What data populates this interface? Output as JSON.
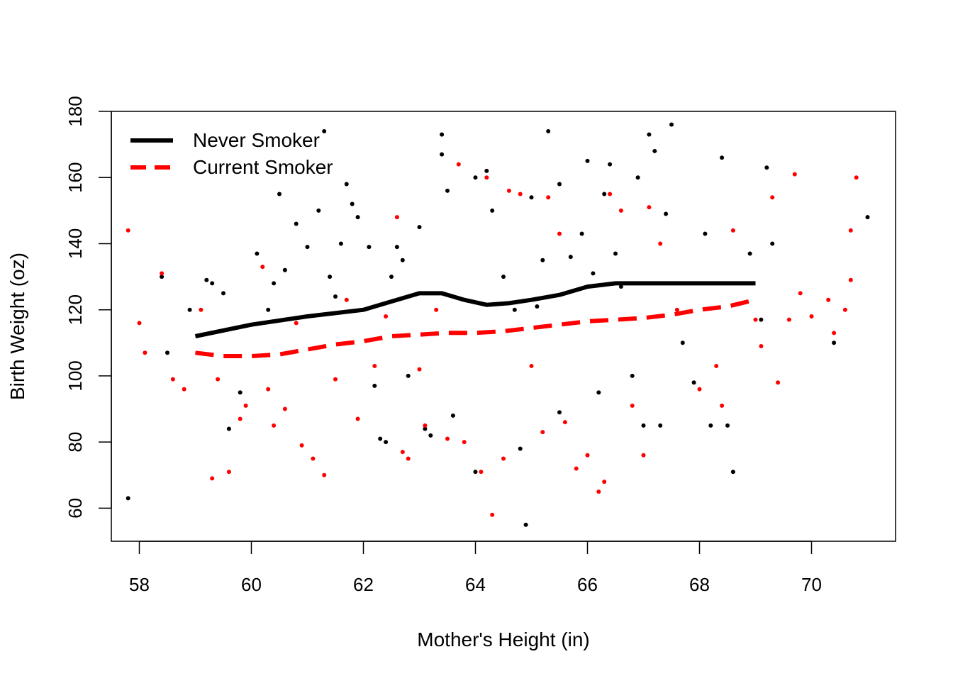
{
  "chart_data": {
    "type": "scatter",
    "title": "",
    "xlabel": "Mother's Height (in)",
    "ylabel": "Birth Weight (oz)",
    "xlim": [
      57.5,
      71.5
    ],
    "ylim": [
      50,
      180
    ],
    "xticks": [
      58,
      60,
      62,
      64,
      66,
      68,
      70
    ],
    "yticks": [
      60,
      80,
      100,
      120,
      140,
      160,
      180
    ],
    "grid": false,
    "legend_position": "top-left",
    "legend": [
      {
        "label": "Never Smoker",
        "color": "#000000",
        "line": "solid"
      },
      {
        "label": "Current Smoker",
        "color": "#ff0000",
        "line": "dashed"
      }
    ],
    "series": [
      {
        "name": "Never Smoker",
        "color": "#000000",
        "smooth": [
          [
            59,
            112
          ],
          [
            60,
            115.5
          ],
          [
            61,
            118
          ],
          [
            62,
            120
          ],
          [
            62.5,
            122.5
          ],
          [
            63,
            125
          ],
          [
            63.4,
            125
          ],
          [
            63.8,
            123
          ],
          [
            64.2,
            121.5
          ],
          [
            64.6,
            122
          ],
          [
            65,
            123
          ],
          [
            65.5,
            124.5
          ],
          [
            66,
            127
          ],
          [
            66.5,
            128
          ],
          [
            67,
            128
          ],
          [
            68,
            128
          ],
          [
            69,
            128
          ]
        ],
        "points": [
          [
            57.8,
            63
          ],
          [
            58.4,
            130
          ],
          [
            58.5,
            107
          ],
          [
            58.9,
            120
          ],
          [
            59.2,
            129
          ],
          [
            59.3,
            128
          ],
          [
            59.5,
            125
          ],
          [
            59.6,
            84
          ],
          [
            59.8,
            95
          ],
          [
            60.1,
            137
          ],
          [
            60.3,
            120
          ],
          [
            60.4,
            128
          ],
          [
            60.5,
            155
          ],
          [
            60.6,
            132
          ],
          [
            60.8,
            146
          ],
          [
            61,
            139
          ],
          [
            61.2,
            150
          ],
          [
            61.3,
            174
          ],
          [
            61.4,
            130
          ],
          [
            61.5,
            124
          ],
          [
            61.6,
            140
          ],
          [
            61.7,
            158
          ],
          [
            61.8,
            152
          ],
          [
            61.9,
            148
          ],
          [
            62.1,
            139
          ],
          [
            62.2,
            97
          ],
          [
            62.3,
            81
          ],
          [
            62.4,
            80
          ],
          [
            62.5,
            130
          ],
          [
            62.6,
            139
          ],
          [
            62.7,
            135
          ],
          [
            62.8,
            100
          ],
          [
            63,
            145
          ],
          [
            63.1,
            84
          ],
          [
            63.2,
            82
          ],
          [
            63.4,
            173
          ],
          [
            63.4,
            167
          ],
          [
            63.5,
            156
          ],
          [
            63.6,
            88
          ],
          [
            63.8,
            113
          ],
          [
            64,
            160
          ],
          [
            64,
            71
          ],
          [
            64.2,
            162
          ],
          [
            64.3,
            150
          ],
          [
            64.5,
            130
          ],
          [
            64.7,
            120
          ],
          [
            64.8,
            78
          ],
          [
            64.9,
            55
          ],
          [
            65,
            154
          ],
          [
            65.1,
            121
          ],
          [
            65.2,
            135
          ],
          [
            65.3,
            174
          ],
          [
            65.5,
            158
          ],
          [
            65.5,
            89
          ],
          [
            65.7,
            136
          ],
          [
            65.9,
            143
          ],
          [
            66,
            165
          ],
          [
            66.1,
            131
          ],
          [
            66.2,
            95
          ],
          [
            66.3,
            155
          ],
          [
            66.4,
            164
          ],
          [
            66.5,
            137
          ],
          [
            66.6,
            127
          ],
          [
            66.8,
            100
          ],
          [
            66.9,
            160
          ],
          [
            67,
            85
          ],
          [
            67.1,
            173
          ],
          [
            67.2,
            168
          ],
          [
            67.3,
            85
          ],
          [
            67.4,
            149
          ],
          [
            67.5,
            176
          ],
          [
            67.7,
            110
          ],
          [
            67.9,
            98
          ],
          [
            68.1,
            143
          ],
          [
            68.2,
            85
          ],
          [
            68.4,
            166
          ],
          [
            68.5,
            85
          ],
          [
            68.6,
            71
          ],
          [
            68.9,
            137
          ],
          [
            69.2,
            163
          ],
          [
            69.3,
            140
          ],
          [
            69.1,
            117
          ],
          [
            70.4,
            110
          ],
          [
            71,
            148
          ]
        ]
      },
      {
        "name": "Current Smoker",
        "color": "#ff0000",
        "smooth": [
          [
            59,
            107
          ],
          [
            59.5,
            106
          ],
          [
            60,
            106
          ],
          [
            60.5,
            106.5
          ],
          [
            61,
            108
          ],
          [
            61.5,
            109.5
          ],
          [
            62,
            110.5
          ],
          [
            62.5,
            112
          ],
          [
            63,
            112.5
          ],
          [
            63.5,
            113
          ],
          [
            64,
            113
          ],
          [
            64.5,
            113.5
          ],
          [
            65,
            114.5
          ],
          [
            65.5,
            115.5
          ],
          [
            66,
            116.5
          ],
          [
            66.5,
            117
          ],
          [
            67,
            117.5
          ],
          [
            67.5,
            118.5
          ],
          [
            68,
            120
          ],
          [
            68.5,
            121
          ],
          [
            69,
            123
          ]
        ],
        "points": [
          [
            57.8,
            144
          ],
          [
            58,
            116
          ],
          [
            58.1,
            107
          ],
          [
            58.4,
            131
          ],
          [
            58.6,
            99
          ],
          [
            58.8,
            96
          ],
          [
            59.1,
            120
          ],
          [
            59.3,
            69
          ],
          [
            59.4,
            99
          ],
          [
            59.6,
            71
          ],
          [
            59.8,
            87
          ],
          [
            59.9,
            91
          ],
          [
            60.2,
            133
          ],
          [
            60.3,
            96
          ],
          [
            60.4,
            85
          ],
          [
            60.6,
            90
          ],
          [
            60.8,
            116
          ],
          [
            60.9,
            79
          ],
          [
            61.1,
            75
          ],
          [
            61.3,
            70
          ],
          [
            61.5,
            99
          ],
          [
            61.7,
            123
          ],
          [
            61.9,
            87
          ],
          [
            62.2,
            103
          ],
          [
            62.4,
            118
          ],
          [
            62.6,
            148
          ],
          [
            62.7,
            77
          ],
          [
            62.8,
            75
          ],
          [
            63,
            102
          ],
          [
            63.1,
            85
          ],
          [
            63.3,
            120
          ],
          [
            63.5,
            81
          ],
          [
            63.7,
            164
          ],
          [
            63.8,
            80
          ],
          [
            64.1,
            71
          ],
          [
            64.2,
            160
          ],
          [
            64.3,
            58
          ],
          [
            64.5,
            75
          ],
          [
            64.6,
            156
          ],
          [
            64.8,
            155
          ],
          [
            65,
            103
          ],
          [
            65.2,
            83
          ],
          [
            65.3,
            154
          ],
          [
            65.5,
            143
          ],
          [
            65.6,
            86
          ],
          [
            65.8,
            72
          ],
          [
            66,
            76
          ],
          [
            66.2,
            65
          ],
          [
            66.3,
            68
          ],
          [
            66.4,
            155
          ],
          [
            66.6,
            150
          ],
          [
            66.8,
            91
          ],
          [
            67,
            76
          ],
          [
            67.1,
            151
          ],
          [
            67.3,
            140
          ],
          [
            67.6,
            120
          ],
          [
            68,
            96
          ],
          [
            68.3,
            103
          ],
          [
            68.4,
            91
          ],
          [
            68.6,
            144
          ],
          [
            69,
            117
          ],
          [
            69.1,
            109
          ],
          [
            69.3,
            154
          ],
          [
            69.4,
            98
          ],
          [
            69.6,
            117
          ],
          [
            69.7,
            161
          ],
          [
            69.8,
            125
          ],
          [
            70,
            118
          ],
          [
            70.3,
            123
          ],
          [
            70.4,
            113
          ],
          [
            70.6,
            120
          ],
          [
            70.7,
            129
          ],
          [
            70.7,
            144
          ],
          [
            70.8,
            160
          ]
        ]
      }
    ]
  }
}
